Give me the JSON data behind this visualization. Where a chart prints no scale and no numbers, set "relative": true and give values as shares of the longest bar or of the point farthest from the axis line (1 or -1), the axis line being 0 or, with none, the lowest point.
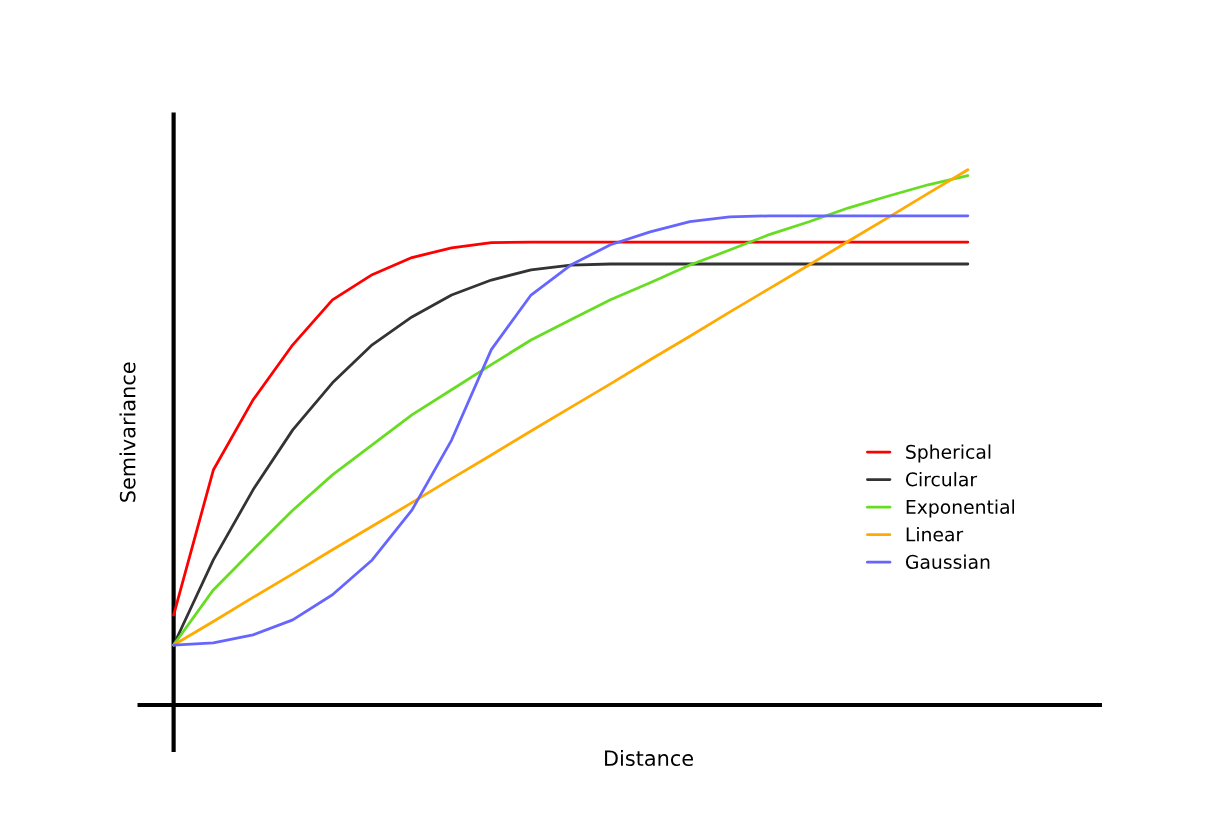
{
  "chart_data": {
    "type": "line",
    "relative": true,
    "xlabel": "Distance",
    "ylabel": "Semivariance",
    "legend": "right",
    "categories": [
      null,
      null,
      null,
      null,
      null,
      null,
      null,
      null,
      null,
      null,
      null,
      null,
      null,
      null,
      null,
      null,
      null,
      null,
      null,
      null,
      null
    ],
    "series": [
      {
        "name": "Spherical",
        "color": "#ff0000",
        "values": [
          0.168,
          0.439,
          0.57,
          0.673,
          0.757,
          0.804,
          0.836,
          0.854,
          0.864,
          0.865,
          0.865,
          0.865,
          0.865,
          0.865,
          0.865,
          0.865,
          0.865,
          0.865,
          0.865,
          0.865,
          0.865
        ]
      },
      {
        "name": "Circular",
        "color": "#333333",
        "values": [
          0.112,
          0.271,
          0.402,
          0.514,
          0.602,
          0.673,
          0.725,
          0.766,
          0.794,
          0.813,
          0.822,
          0.824,
          0.824,
          0.824,
          0.824,
          0.824,
          0.824,
          0.824,
          0.824,
          0.824,
          0.824
        ]
      },
      {
        "name": "Exponential",
        "color": "#66dd22",
        "values": [
          0.112,
          0.215,
          0.29,
          0.364,
          0.43,
          0.486,
          0.542,
          0.589,
          0.636,
          0.682,
          0.72,
          0.757,
          0.789,
          0.822,
          0.85,
          0.879,
          0.903,
          0.929,
          0.951,
          0.972,
          0.989
        ]
      },
      {
        "name": "Linear",
        "color": "#ffaa00",
        "values": [
          0.112,
          0.156,
          0.201,
          0.245,
          0.29,
          0.334,
          0.378,
          0.423,
          0.467,
          0.512,
          0.556,
          0.6,
          0.645,
          0.689,
          0.734,
          0.778,
          0.822,
          0.867,
          0.911,
          0.956,
          1.0
        ]
      },
      {
        "name": "Gaussian",
        "color": "#6666ff",
        "values": [
          0.112,
          0.116,
          0.131,
          0.159,
          0.206,
          0.271,
          0.364,
          0.495,
          0.664,
          0.766,
          0.822,
          0.86,
          0.884,
          0.903,
          0.912,
          0.914,
          0.914,
          0.914,
          0.914,
          0.914,
          0.914
        ]
      }
    ]
  }
}
